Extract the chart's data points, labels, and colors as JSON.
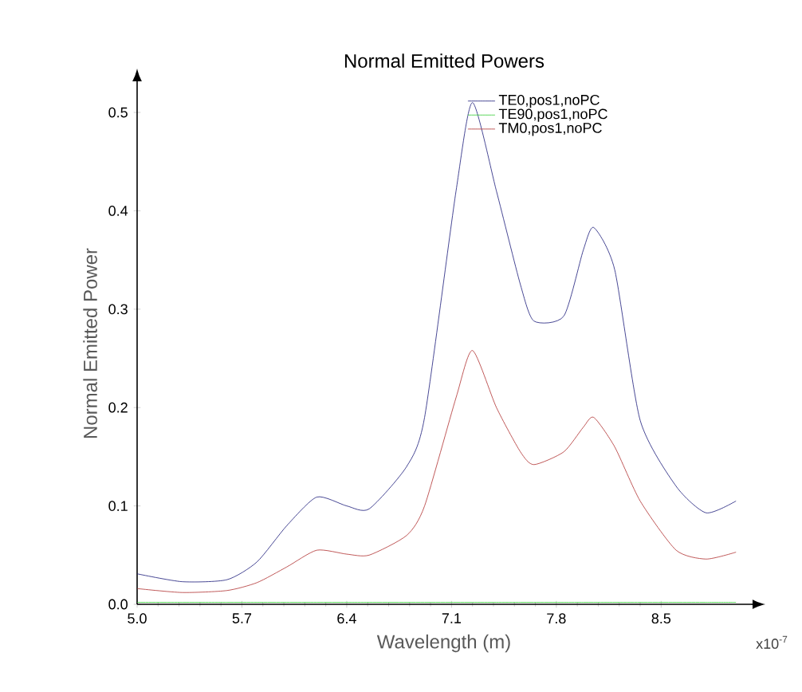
{
  "chart_data": {
    "type": "line",
    "title": "Normal Emitted Powers",
    "xlabel": "Wavelength (m)",
    "ylabel": "Normal Emitted Power",
    "annotations": [
      "x10$^{-7}$"
    ],
    "x": [
      5.0,
      5.3,
      5.6,
      5.8,
      6.0,
      6.2,
      6.4,
      6.55,
      6.8,
      6.92,
      7.13,
      7.24,
      7.4,
      7.56,
      7.65,
      7.85,
      7.98,
      8.05,
      8.19,
      8.36,
      8.6,
      8.8,
      9.0
    ],
    "series": [
      {
        "name": "TE0,pos1,noPC",
        "color": "#1a1a7a",
        "values": [
          0.031,
          0.023,
          0.025,
          0.043,
          0.08,
          0.109,
          0.1,
          0.097,
          0.14,
          0.19,
          0.42,
          0.51,
          0.42,
          0.325,
          0.288,
          0.293,
          0.36,
          0.383,
          0.34,
          0.187,
          0.12,
          0.093,
          0.105
        ]
      },
      {
        "name": "TE90,pos1,noPC",
        "color": "#33cc33",
        "values": [
          0.002,
          0.002,
          0.002,
          0.002,
          0.002,
          0.002,
          0.002,
          0.002,
          0.002,
          0.002,
          0.002,
          0.002,
          0.002,
          0.002,
          0.002,
          0.002,
          0.002,
          0.002,
          0.002,
          0.002,
          0.002,
          0.002,
          0.002
        ]
      },
      {
        "name": "TM0,pos1,noPC",
        "color": "#b03030",
        "values": [
          0.016,
          0.012,
          0.014,
          0.022,
          0.038,
          0.055,
          0.051,
          0.05,
          0.07,
          0.1,
          0.21,
          0.258,
          0.2,
          0.155,
          0.142,
          0.155,
          0.18,
          0.19,
          0.16,
          0.105,
          0.055,
          0.046,
          0.053
        ]
      }
    ],
    "xlim": [
      5.0,
      9.1
    ],
    "ylim": [
      0,
      0.53
    ],
    "xticks": [
      {
        "value": 5.0,
        "label": "5.0"
      },
      5.7,
      6.4,
      7.1,
      7.8,
      8.5
    ],
    "yticks": [
      {
        "value": 0,
        "label": "0.0"
      },
      0.1,
      0.2,
      0.3,
      0.4,
      0.5
    ],
    "grid": false,
    "legend": "top",
    "marker": "none",
    "line_style": "solid"
  }
}
